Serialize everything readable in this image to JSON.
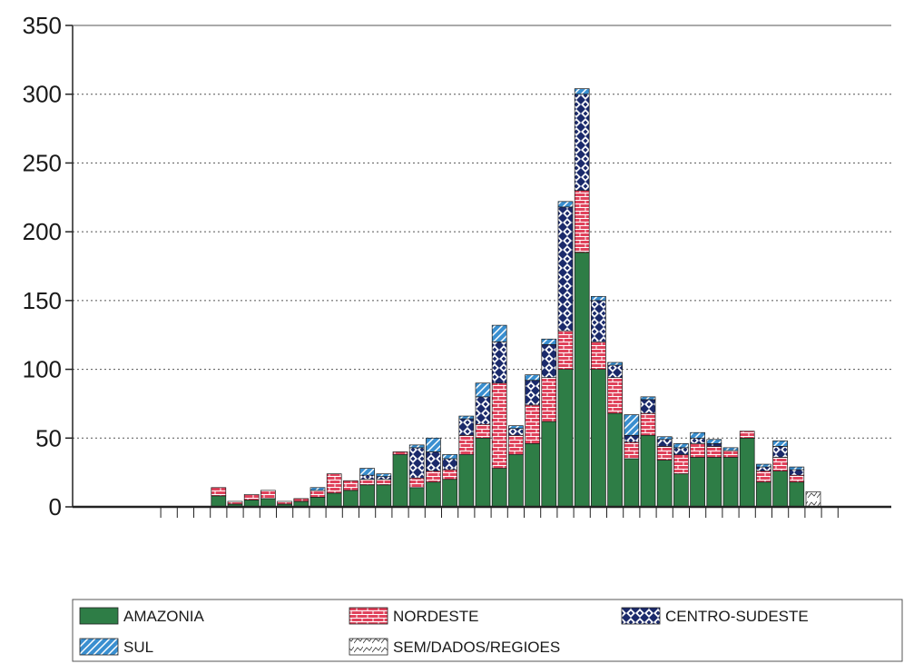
{
  "chart_data": {
    "type": "bar",
    "stacked": true,
    "title": "",
    "xlabel": "",
    "ylabel": "",
    "ylim": [
      0,
      350
    ],
    "yticks": [
      0,
      50,
      100,
      150,
      200,
      250,
      300,
      350
    ],
    "grid": "horizontal-dotted",
    "legend_position": "bottom",
    "colors": {
      "amazonia": "#2e7d46",
      "nordeste": "#e0435c",
      "centro_sudeste": "#1b2a6b",
      "sul": "#3a8fd0",
      "sem_dados": "#ffffff"
    },
    "categories": [
      "",
      "",
      "",
      "",
      "",
      "",
      "",
      "",
      "",
      "",
      "",
      "",
      "",
      "",
      "",
      "",
      "",
      "",
      "",
      "",
      "",
      "",
      "",
      "",
      "",
      "",
      "",
      "",
      "",
      "",
      "",
      "",
      "",
      "",
      "",
      "",
      "",
      "",
      "",
      "",
      "",
      "",
      ""
    ],
    "series": [
      {
        "name": "AMAZONIA",
        "key": "amazonia",
        "values": [
          0,
          0,
          0,
          0,
          8,
          2,
          5,
          6,
          2,
          4,
          7,
          10,
          12,
          16,
          16,
          38,
          14,
          18,
          20,
          38,
          50,
          28,
          38,
          46,
          62,
          100,
          185,
          100,
          68,
          35,
          52,
          34,
          24,
          36,
          36,
          36,
          50,
          18,
          26,
          18,
          0,
          0,
          0
        ]
      },
      {
        "name": "NORDESTE",
        "key": "nordeste",
        "values": [
          0,
          0,
          0,
          0,
          6,
          2,
          4,
          6,
          2,
          2,
          5,
          14,
          7,
          4,
          4,
          2,
          7,
          8,
          7,
          14,
          10,
          62,
          14,
          28,
          32,
          28,
          45,
          20,
          26,
          12,
          16,
          10,
          14,
          10,
          8,
          5,
          5,
          8,
          10,
          5,
          0,
          0,
          0
        ]
      },
      {
        "name": "CENTRO-SUDESTE",
        "key": "centro_sudeste",
        "values": [
          0,
          0,
          0,
          0,
          0,
          0,
          0,
          0,
          0,
          0,
          0,
          0,
          0,
          3,
          2,
          0,
          22,
          14,
          8,
          12,
          20,
          30,
          5,
          18,
          24,
          90,
          70,
          30,
          9,
          5,
          10,
          5,
          5,
          4,
          2,
          0,
          0,
          3,
          8,
          4,
          0,
          0,
          0
        ]
      },
      {
        "name": "SUL",
        "key": "sul",
        "values": [
          0,
          0,
          0,
          0,
          0,
          0,
          0,
          0,
          0,
          0,
          2,
          0,
          0,
          5,
          2,
          0,
          2,
          10,
          3,
          2,
          10,
          12,
          2,
          4,
          4,
          4,
          4,
          3,
          2,
          15,
          2,
          2,
          3,
          4,
          3,
          2,
          0,
          2,
          4,
          2,
          0,
          0,
          0
        ]
      },
      {
        "name": "SEM/DADOS/REGIOES",
        "key": "sem_dados",
        "values": [
          0,
          0,
          0,
          0,
          0,
          0,
          0,
          0,
          0,
          0,
          0,
          0,
          0,
          0,
          0,
          0,
          0,
          0,
          0,
          0,
          0,
          0,
          0,
          0,
          0,
          0,
          0,
          0,
          0,
          0,
          0,
          0,
          0,
          0,
          0,
          0,
          0,
          0,
          0,
          0,
          11,
          0,
          0
        ]
      }
    ]
  },
  "legend": {
    "items": [
      {
        "label": "AMAZONIA",
        "key": "amazonia"
      },
      {
        "label": "NORDESTE",
        "key": "nordeste"
      },
      {
        "label": "CENTRO-SUDESTE",
        "key": "centro_sudeste"
      },
      {
        "label": "SUL",
        "key": "sul"
      },
      {
        "label": "SEM/DADOS/REGIOES",
        "key": "sem_dados"
      }
    ]
  }
}
